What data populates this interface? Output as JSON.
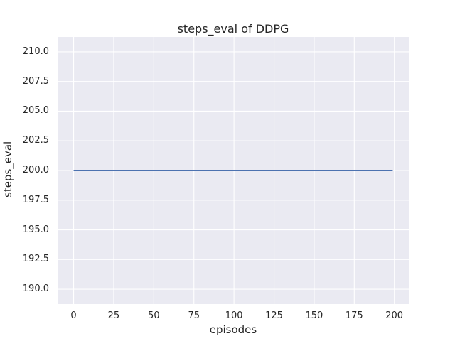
{
  "chart_data": {
    "type": "line",
    "title": "steps_eval of DDPG",
    "xlabel": "episodes",
    "ylabel": "steps_eval",
    "x_ticks": [
      0,
      25,
      50,
      75,
      100,
      125,
      150,
      175,
      200
    ],
    "y_ticks": [
      190.0,
      192.5,
      195.0,
      197.5,
      200.0,
      202.5,
      205.0,
      207.5,
      210.0
    ],
    "y_tick_decimals": 1,
    "xlim": [
      -10,
      209
    ],
    "ylim": [
      188.75,
      211.25
    ],
    "grid": true,
    "legend_position": "none",
    "series": [
      {
        "name": "steps_eval",
        "x": [
          0,
          199
        ],
        "y": [
          200.0,
          200.0
        ],
        "constant_y": 200.0,
        "color": "#4c72b0"
      }
    ],
    "colors": {
      "plot_background": "#eaeaf2",
      "figure_background": "#ffffff",
      "grid": "#ffffff",
      "text": "#262626",
      "line": "#4c72b0"
    }
  }
}
